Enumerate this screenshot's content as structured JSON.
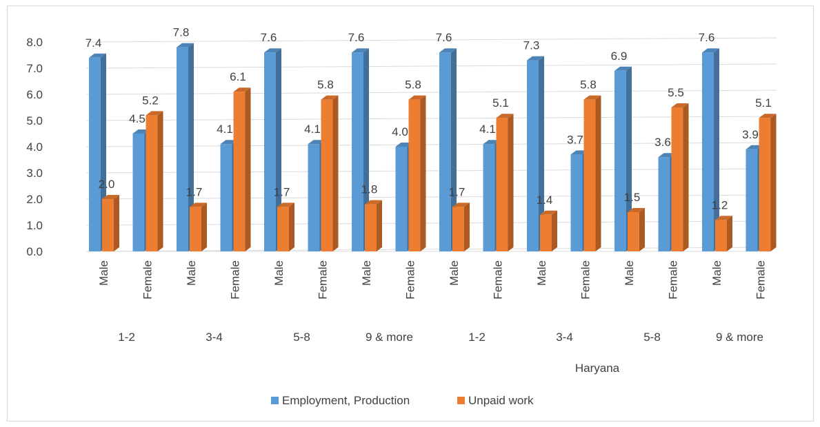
{
  "chart_data": {
    "type": "bar",
    "title": "",
    "xlabel": "",
    "ylabel": "",
    "ylim": [
      0,
      8
    ],
    "yticks": [
      "0.0",
      "1.0",
      "2.0",
      "3.0",
      "4.0",
      "5.0",
      "6.0",
      "7.0",
      "8.0"
    ],
    "grid": true,
    "legend_position": "bottom",
    "categories": [
      "Male",
      "Female",
      "Male",
      "Female",
      "Male",
      "Female",
      "Male",
      "Female",
      "Male",
      "Female",
      "Male",
      "Female",
      "Male",
      "Female",
      "Male",
      "Female"
    ],
    "groups": [
      "1-2",
      "3-4",
      "5-8",
      "9 & more",
      "1-2",
      "3-4",
      "5-8",
      "9 & more"
    ],
    "region_label": "Haryana",
    "series": [
      {
        "name": "Employment, Production",
        "color": "#5B9BD5",
        "values": [
          7.4,
          4.5,
          7.8,
          4.1,
          7.6,
          4.1,
          7.6,
          4.0,
          7.6,
          4.1,
          7.3,
          3.7,
          6.9,
          3.6,
          7.6,
          3.9
        ],
        "labels": [
          "7.4",
          "4.5",
          "7.8",
          "4.1",
          "7.6",
          "4.1",
          "7.6",
          "4.0",
          "7.6",
          "4.1",
          "7.3",
          "3.7",
          "6.9",
          "3.6",
          "7.6",
          "3.9"
        ]
      },
      {
        "name": "Unpaid work",
        "color": "#ED7D31",
        "values": [
          2.0,
          5.2,
          1.7,
          6.1,
          1.7,
          5.8,
          1.8,
          5.8,
          1.7,
          5.1,
          1.4,
          5.8,
          1.5,
          5.5,
          1.2,
          5.1
        ],
        "labels": [
          "2.0",
          "5.2",
          "1.7",
          "6.1",
          "1.7",
          "5.8",
          "1.8",
          "5.8",
          "1.7",
          "5.1",
          "1.4",
          "5.8",
          "1.5",
          "5.5",
          "1.2",
          "5.1"
        ]
      }
    ]
  }
}
